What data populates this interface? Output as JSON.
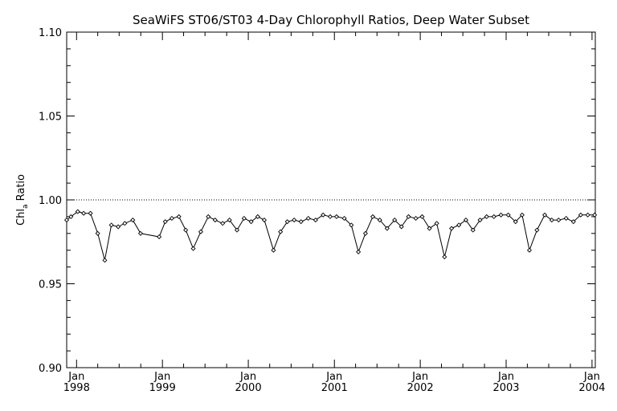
{
  "chart_data": {
    "type": "line",
    "title": "SeaWiFS ST06/ST03 4-Day Chlorophyll Ratios, Deep Water Subset",
    "ylabel_main": "Chl",
    "ylabel_sub": "a",
    "ylabel_rest": " Ratio",
    "ylim": [
      0.9,
      1.1
    ],
    "yticks": [
      "0.90",
      "0.95",
      "1.00",
      "1.05",
      "1.10"
    ],
    "xlim": [
      "1997-11-20",
      "2004-01-15"
    ],
    "xticks": [
      {
        "date": "1998-01-01",
        "month": "Jan",
        "year": "1998"
      },
      {
        "date": "1999-01-01",
        "month": "Jan",
        "year": "1999"
      },
      {
        "date": "2000-01-01",
        "month": "Jan",
        "year": "2000"
      },
      {
        "date": "2001-01-01",
        "month": "Jan",
        "year": "2001"
      },
      {
        "date": "2002-01-01",
        "month": "Jan",
        "year": "2002"
      },
      {
        "date": "2003-01-01",
        "month": "Jan",
        "year": "2003"
      },
      {
        "date": "2004-01-01",
        "month": "Jan",
        "year": "2004"
      }
    ],
    "reference_line": 1.0,
    "grid": false,
    "series": [
      {
        "x": [
          "1997-11-20",
          "1997-12-08",
          "1998-01-06",
          "1998-01-31",
          "1998-03-01",
          "1998-04-01",
          "1998-05-01",
          "1998-05-29",
          "1998-06-27",
          "1998-07-25",
          "1998-08-28",
          "1998-09-30",
          "1998-12-18",
          "1999-01-13",
          "1999-02-10",
          "1999-03-12",
          "1999-04-10",
          "1999-05-12",
          "1999-06-13",
          "1999-07-15",
          "1999-08-13",
          "1999-09-14",
          "1999-10-13",
          "1999-11-14",
          "1999-12-14",
          "2000-01-13",
          "2000-02-10",
          "2000-03-09",
          "2000-04-17",
          "2000-05-17",
          "2000-06-15",
          "2000-07-14",
          "2000-08-12",
          "2000-09-12",
          "2000-10-13",
          "2000-11-14",
          "2000-12-14",
          "2001-01-10",
          "2001-02-12",
          "2001-03-14",
          "2001-04-13",
          "2001-05-13",
          "2001-06-13",
          "2001-07-13",
          "2001-08-13",
          "2001-09-14",
          "2001-10-13",
          "2001-11-12",
          "2001-12-13",
          "2002-01-09",
          "2002-02-09",
          "2002-03-12",
          "2002-04-14",
          "2002-05-14",
          "2002-06-14",
          "2002-07-14",
          "2002-08-13",
          "2002-09-12",
          "2002-10-10",
          "2002-11-10",
          "2002-12-10",
          "2003-01-10",
          "2003-02-10",
          "2003-03-10",
          "2003-04-10",
          "2003-05-12",
          "2003-06-14",
          "2003-07-14",
          "2003-08-12",
          "2003-09-13",
          "2003-10-14",
          "2003-11-14",
          "2003-12-14",
          "2004-01-12"
        ],
        "y": [
          0.988,
          0.99,
          0.993,
          0.992,
          0.992,
          0.98,
          0.964,
          0.985,
          0.984,
          0.986,
          0.988,
          0.98,
          0.978,
          0.987,
          0.989,
          0.99,
          0.982,
          0.971,
          0.981,
          0.99,
          0.988,
          0.986,
          0.988,
          0.982,
          0.989,
          0.987,
          0.99,
          0.988,
          0.97,
          0.981,
          0.987,
          0.988,
          0.987,
          0.989,
          0.988,
          0.991,
          0.99,
          0.99,
          0.989,
          0.985,
          0.969,
          0.98,
          0.99,
          0.988,
          0.983,
          0.988,
          0.984,
          0.99,
          0.989,
          0.99,
          0.983,
          0.986,
          0.966,
          0.983,
          0.985,
          0.988,
          0.982,
          0.988,
          0.99,
          0.99,
          0.991,
          0.991,
          0.987,
          0.991,
          0.97,
          0.982,
          0.991,
          0.988,
          0.988,
          0.989,
          0.987,
          0.991,
          0.991,
          0.991
        ]
      }
    ]
  }
}
